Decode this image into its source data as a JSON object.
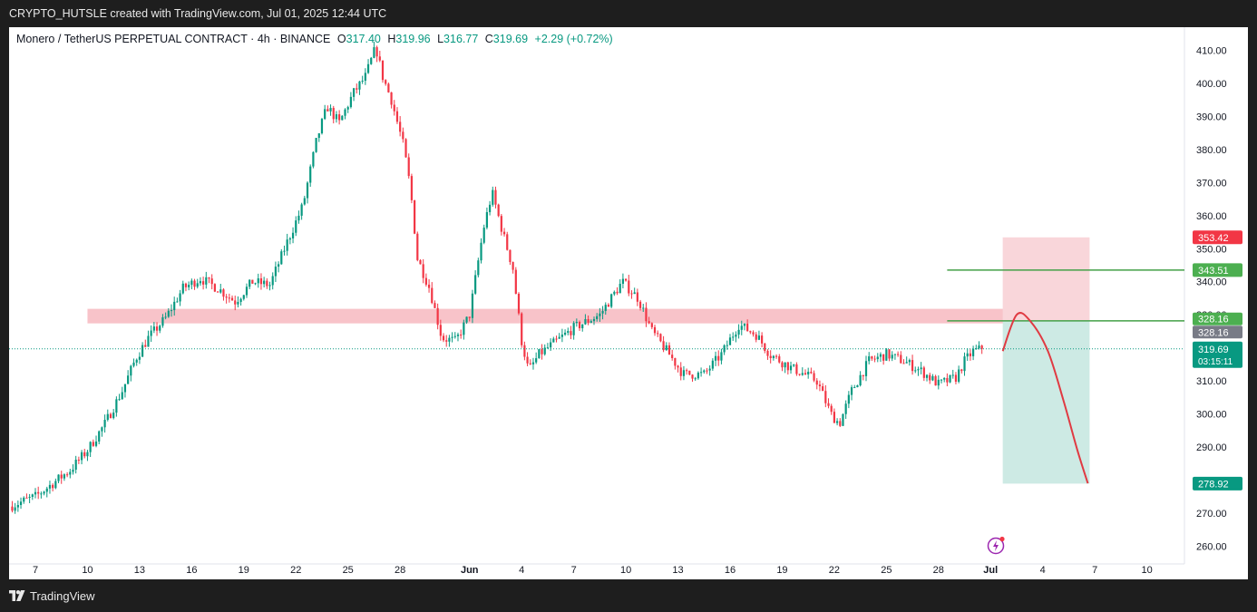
{
  "header": {
    "caption": "CRYPTO_HUTSLE created with TradingView.com, Jul 01, 2025 12:44 UTC"
  },
  "legend": {
    "symbol": "Monero / TetherUS PERPETUAL CONTRACT · 4h · BINANCE",
    "o_label": "O",
    "o_value": "317.40",
    "h_label": "H",
    "h_value": "319.96",
    "l_label": "L",
    "l_value": "316.77",
    "c_label": "C",
    "c_value": "319.69",
    "change": "+2.29 (+0.72%)"
  },
  "footer": {
    "brand": "TradingView"
  },
  "colors": {
    "up": "#089981",
    "down": "#f23645",
    "zone": "#f7b8bf",
    "target_line": "#43a047",
    "stop_zone": "#f9d6da",
    "profit_zone": "#cdeae4",
    "projection": "#e03a42"
  },
  "chart_data": {
    "type": "candlestick",
    "timeframe": "4h",
    "y_axis": {
      "ticks": [
        410,
        400,
        390,
        380,
        370,
        360,
        350,
        340,
        330,
        320,
        310,
        300,
        290,
        280,
        270,
        260
      ],
      "tick_labels": [
        "410.00",
        "400.00",
        "390.00",
        "380.00",
        "370.00",
        "360.00",
        "350.00",
        "340.00",
        "330.00",
        "320.00",
        "310.00",
        "300.00",
        "290.00",
        "280.00",
        "270.00",
        "260.00"
      ],
      "range": [
        257,
        417
      ]
    },
    "x_axis": {
      "tick_labels": [
        "7",
        "10",
        "13",
        "16",
        "19",
        "22",
        "25",
        "28",
        "Jun",
        "4",
        "7",
        "10",
        "13",
        "16",
        "19",
        "22",
        "25",
        "28",
        "Jul",
        "4",
        "7",
        "10"
      ],
      "tick_day_index": [
        0,
        3,
        6,
        9,
        12,
        15,
        18,
        21,
        25,
        28,
        31,
        34,
        37,
        40,
        43,
        46,
        49,
        52,
        55,
        58,
        61,
        64
      ],
      "day0": "May 7",
      "last_candle_day_index": 54.5
    },
    "anchors": [
      [
        -1.5,
        272
      ],
      [
        0,
        275
      ],
      [
        1,
        279
      ],
      [
        2,
        283
      ],
      [
        3,
        289
      ],
      [
        4,
        297
      ],
      [
        5,
        307
      ],
      [
        5.8,
        317
      ],
      [
        6.5,
        323
      ],
      [
        7.5,
        329
      ],
      [
        8.5,
        338
      ],
      [
        9.5,
        341
      ],
      [
        10.5,
        338
      ],
      [
        11.5,
        334
      ],
      [
        12.5,
        340
      ],
      [
        13.5,
        339
      ],
      [
        14.5,
        352
      ],
      [
        15.4,
        363
      ],
      [
        16.2,
        383
      ],
      [
        16.8,
        393
      ],
      [
        17.5,
        388
      ],
      [
        18.3,
        397
      ],
      [
        19.0,
        402
      ],
      [
        19.6,
        411
      ],
      [
        20.0,
        402
      ],
      [
        20.5,
        395
      ],
      [
        21.2,
        381
      ],
      [
        21.6,
        368
      ],
      [
        22.0,
        347
      ],
      [
        22.7,
        338
      ],
      [
        23.4,
        323
      ],
      [
        24.2,
        322
      ],
      [
        25.0,
        330
      ],
      [
        25.8,
        356
      ],
      [
        26.3,
        367
      ],
      [
        26.9,
        355
      ],
      [
        27.5,
        344
      ],
      [
        28.0,
        322
      ],
      [
        28.4,
        313
      ],
      [
        29.0,
        318
      ],
      [
        30.0,
        322
      ],
      [
        31.0,
        326
      ],
      [
        32.5,
        330
      ],
      [
        33.8,
        340
      ],
      [
        34.7,
        335
      ],
      [
        35.5,
        325
      ],
      [
        36.5,
        318
      ],
      [
        37.3,
        312
      ],
      [
        38.5,
        312
      ],
      [
        39.5,
        318
      ],
      [
        40.5,
        327
      ],
      [
        41.5,
        324
      ],
      [
        42.3,
        318
      ],
      [
        43.5,
        314
      ],
      [
        44.3,
        312
      ],
      [
        45.0,
        310
      ],
      [
        45.8,
        300
      ],
      [
        46.3,
        297
      ],
      [
        47.0,
        307
      ],
      [
        48.0,
        316
      ],
      [
        49.0,
        318
      ],
      [
        50.0,
        316
      ],
      [
        51.0,
        313
      ],
      [
        52.0,
        309
      ],
      [
        53.0,
        311
      ],
      [
        53.5,
        316
      ],
      [
        54.0,
        319
      ],
      [
        54.5,
        319.7
      ]
    ],
    "resistance_zone": {
      "low": 327.4,
      "high": 331.8,
      "from_day": 3,
      "to_day": 57.5
    },
    "price_lines": [
      {
        "price": 343.51,
        "label": "343.51",
        "from_day": 52.5
      },
      {
        "price": 328.16,
        "label": "328.16",
        "from_day": 52.5
      }
    ],
    "position": {
      "entry": 328.16,
      "stop": 353.42,
      "target": 278.92,
      "entry_label": "328.16",
      "stop_label": "353.42",
      "target_label": "278.92",
      "from_day": 55.7,
      "to_day": 60.7
    },
    "last_price": {
      "price": 319.69,
      "label": "319.69",
      "countdown": "03:15:11"
    },
    "projection": [
      [
        55.7,
        319
      ],
      [
        56.5,
        330
      ],
      [
        57.3,
        328
      ],
      [
        58.3,
        319
      ],
      [
        59.2,
        304
      ],
      [
        60.0,
        289
      ],
      [
        60.6,
        279
      ]
    ],
    "bolt_day_index": 55.3
  }
}
